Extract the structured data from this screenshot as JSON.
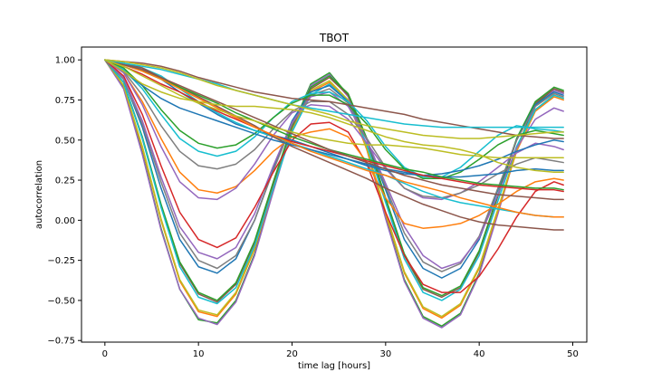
{
  "chart_data": {
    "type": "line",
    "title": "TBOT",
    "xlabel": "time lag [hours]",
    "ylabel": "autocorrelation",
    "xlim": [
      -2.5,
      51.5
    ],
    "ylim": [
      -0.76,
      1.08
    ],
    "xticks": [
      0,
      10,
      20,
      30,
      40,
      50
    ],
    "xtick_labels": [
      "0",
      "10",
      "20",
      "30",
      "40",
      "50"
    ],
    "yticks": [
      -0.75,
      -0.5,
      -0.25,
      0.0,
      0.25,
      0.5,
      0.75,
      1.0
    ],
    "ytick_labels": [
      "−0.75",
      "−0.50",
      "−0.25",
      "0.00",
      "0.25",
      "0.50",
      "0.75",
      "1.00"
    ],
    "grid": false,
    "legend": "none",
    "x": [
      0,
      2,
      4,
      6,
      8,
      10,
      12,
      14,
      16,
      18,
      20,
      22,
      24,
      26,
      28,
      30,
      32,
      34,
      36,
      38,
      40,
      42,
      44,
      46,
      48,
      49
    ],
    "series": [
      {
        "color": "#2ca02c",
        "values": [
          1.0,
          0.83,
          0.42,
          -0.05,
          -0.43,
          -0.62,
          -0.64,
          -0.5,
          -0.21,
          0.2,
          0.58,
          0.85,
          0.92,
          0.78,
          0.45,
          0.02,
          -0.37,
          -0.6,
          -0.66,
          -0.58,
          -0.33,
          0.05,
          0.45,
          0.72,
          0.82,
          0.8
        ]
      },
      {
        "color": "#9467bd",
        "values": [
          1.0,
          0.82,
          0.41,
          -0.06,
          -0.43,
          -0.61,
          -0.65,
          -0.51,
          -0.22,
          0.18,
          0.57,
          0.84,
          0.91,
          0.77,
          0.44,
          0.01,
          -0.38,
          -0.61,
          -0.67,
          -0.59,
          -0.34,
          0.04,
          0.44,
          0.71,
          0.81,
          0.79
        ]
      },
      {
        "color": "#ff7f0e",
        "values": [
          1.0,
          0.84,
          0.45,
          0.0,
          -0.38,
          -0.57,
          -0.6,
          -0.46,
          -0.18,
          0.2,
          0.56,
          0.8,
          0.86,
          0.74,
          0.44,
          0.04,
          -0.33,
          -0.55,
          -0.61,
          -0.53,
          -0.3,
          0.06,
          0.43,
          0.68,
          0.77,
          0.75
        ]
      },
      {
        "color": "#bcbd22",
        "values": [
          1.0,
          0.84,
          0.46,
          0.01,
          -0.37,
          -0.56,
          -0.59,
          -0.45,
          -0.17,
          0.21,
          0.57,
          0.81,
          0.87,
          0.75,
          0.45,
          0.05,
          -0.32,
          -0.54,
          -0.6,
          -0.52,
          -0.29,
          0.07,
          0.44,
          0.69,
          0.78,
          0.76
        ]
      },
      {
        "color": "#8c564b",
        "values": [
          1.0,
          0.86,
          0.51,
          0.09,
          -0.27,
          -0.46,
          -0.51,
          -0.4,
          -0.14,
          0.23,
          0.58,
          0.82,
          0.89,
          0.78,
          0.5,
          0.13,
          -0.22,
          -0.43,
          -0.48,
          -0.42,
          -0.2,
          0.15,
          0.5,
          0.73,
          0.82,
          0.8
        ]
      },
      {
        "color": "#2ca02c",
        "values": [
          1.0,
          0.86,
          0.52,
          0.1,
          -0.26,
          -0.45,
          -0.5,
          -0.39,
          -0.13,
          0.24,
          0.59,
          0.83,
          0.9,
          0.79,
          0.51,
          0.14,
          -0.21,
          -0.42,
          -0.47,
          -0.41,
          -0.19,
          0.16,
          0.51,
          0.74,
          0.83,
          0.81
        ]
      },
      {
        "color": "#17becf",
        "values": [
          1.0,
          0.86,
          0.51,
          0.08,
          -0.29,
          -0.48,
          -0.52,
          -0.42,
          -0.16,
          0.2,
          0.55,
          0.78,
          0.85,
          0.74,
          0.47,
          0.11,
          -0.24,
          -0.45,
          -0.5,
          -0.43,
          -0.22,
          0.12,
          0.46,
          0.69,
          0.78,
          0.76
        ]
      },
      {
        "color": "#1f77b4",
        "values": [
          1.0,
          0.88,
          0.58,
          0.2,
          -0.12,
          -0.29,
          -0.33,
          -0.24,
          0.0,
          0.32,
          0.62,
          0.8,
          0.84,
          0.74,
          0.5,
          0.19,
          -0.12,
          -0.3,
          -0.36,
          -0.3,
          -0.12,
          0.19,
          0.5,
          0.72,
          0.8,
          0.78
        ]
      },
      {
        "color": "#7f7f7f",
        "values": [
          1.0,
          0.88,
          0.6,
          0.24,
          -0.08,
          -0.25,
          -0.3,
          -0.22,
          0.0,
          0.31,
          0.6,
          0.78,
          0.82,
          0.73,
          0.5,
          0.21,
          -0.08,
          -0.26,
          -0.32,
          -0.27,
          -0.1,
          0.2,
          0.5,
          0.71,
          0.79,
          0.77
        ]
      },
      {
        "color": "#9467bd",
        "values": [
          1.0,
          0.89,
          0.62,
          0.27,
          -0.04,
          -0.2,
          -0.24,
          -0.17,
          0.04,
          0.34,
          0.61,
          0.77,
          0.8,
          0.71,
          0.5,
          0.23,
          -0.04,
          -0.22,
          -0.3,
          -0.26,
          -0.11,
          0.16,
          0.45,
          0.63,
          0.7,
          0.68
        ]
      },
      {
        "color": "#d62728",
        "values": [
          1.0,
          0.9,
          0.66,
          0.34,
          0.05,
          -0.12,
          -0.17,
          -0.11,
          0.08,
          0.3,
          0.5,
          0.6,
          0.61,
          0.55,
          0.35,
          0.05,
          -0.22,
          -0.4,
          -0.45,
          -0.45,
          -0.35,
          -0.18,
          0.02,
          0.18,
          0.24,
          0.22
        ]
      },
      {
        "color": "#ff7f0e",
        "values": [
          1.0,
          0.92,
          0.74,
          0.51,
          0.3,
          0.19,
          0.17,
          0.21,
          0.31,
          0.43,
          0.52,
          0.55,
          0.57,
          0.52,
          0.36,
          0.14,
          -0.02,
          -0.05,
          -0.04,
          -0.02,
          0.03,
          0.1,
          0.18,
          0.24,
          0.26,
          0.25
        ]
      },
      {
        "color": "#9467bd",
        "values": [
          1.0,
          0.92,
          0.72,
          0.46,
          0.24,
          0.14,
          0.13,
          0.2,
          0.35,
          0.53,
          0.67,
          0.72,
          0.71,
          0.63,
          0.48,
          0.32,
          0.2,
          0.14,
          0.13,
          0.17,
          0.24,
          0.33,
          0.42,
          0.48,
          0.46,
          0.44
        ]
      },
      {
        "color": "#7f7f7f",
        "values": [
          1.0,
          0.93,
          0.78,
          0.59,
          0.43,
          0.34,
          0.32,
          0.35,
          0.44,
          0.57,
          0.68,
          0.74,
          0.74,
          0.66,
          0.51,
          0.33,
          0.2,
          0.15,
          0.14,
          0.17,
          0.22,
          0.29,
          0.35,
          0.39,
          0.37,
          0.36
        ]
      },
      {
        "color": "#17becf",
        "values": [
          1.0,
          0.94,
          0.82,
          0.66,
          0.51,
          0.43,
          0.4,
          0.43,
          0.52,
          0.64,
          0.74,
          0.79,
          0.8,
          0.74,
          0.62,
          0.46,
          0.33,
          0.27,
          0.27,
          0.33,
          0.43,
          0.53,
          0.59,
          0.57,
          0.56,
          0.55
        ]
      },
      {
        "color": "#2ca02c",
        "values": [
          1.0,
          0.95,
          0.84,
          0.69,
          0.56,
          0.48,
          0.45,
          0.47,
          0.54,
          0.64,
          0.73,
          0.78,
          0.78,
          0.72,
          0.6,
          0.44,
          0.32,
          0.26,
          0.26,
          0.3,
          0.38,
          0.47,
          0.53,
          0.56,
          0.54,
          0.53
        ]
      },
      {
        "color": "#1f77b4",
        "values": [
          1.0,
          0.98,
          0.94,
          0.88,
          0.8,
          0.73,
          0.66,
          0.6,
          0.56,
          0.53,
          0.5,
          0.46,
          0.42,
          0.38,
          0.34,
          0.31,
          0.29,
          0.28,
          0.29,
          0.31,
          0.34,
          0.38,
          0.43,
          0.47,
          0.5,
          0.49
        ]
      },
      {
        "color": "#17becf",
        "values": [
          1.0,
          0.98,
          0.95,
          0.9,
          0.82,
          0.74,
          0.67,
          0.61,
          0.56,
          0.52,
          0.48,
          0.44,
          0.4,
          0.36,
          0.32,
          0.28,
          0.23,
          0.18,
          0.14,
          0.11,
          0.09,
          0.07,
          0.05,
          0.03,
          0.02,
          0.02
        ]
      },
      {
        "color": "#8c564b",
        "values": [
          1.0,
          0.98,
          0.95,
          0.89,
          0.83,
          0.77,
          0.71,
          0.65,
          0.59,
          0.52,
          0.46,
          0.41,
          0.36,
          0.31,
          0.26,
          0.2,
          0.15,
          0.1,
          0.06,
          0.02,
          -0.01,
          -0.03,
          -0.04,
          -0.05,
          -0.06,
          -0.06
        ]
      },
      {
        "color": "#1f77b4",
        "values": [
          1.0,
          0.93,
          0.84,
          0.76,
          0.7,
          0.66,
          0.62,
          0.58,
          0.54,
          0.5,
          0.47,
          0.44,
          0.41,
          0.38,
          0.35,
          0.32,
          0.3,
          0.28,
          0.27,
          0.27,
          0.28,
          0.29,
          0.31,
          0.32,
          0.31,
          0.31
        ]
      },
      {
        "color": "#2ca02c",
        "values": [
          1.0,
          0.97,
          0.93,
          0.88,
          0.83,
          0.78,
          0.73,
          0.67,
          0.62,
          0.57,
          0.52,
          0.48,
          0.44,
          0.41,
          0.38,
          0.35,
          0.32,
          0.3,
          0.27,
          0.25,
          0.23,
          0.22,
          0.21,
          0.2,
          0.2,
          0.19
        ]
      },
      {
        "color": "#d62728",
        "values": [
          1.0,
          0.96,
          0.91,
          0.85,
          0.8,
          0.74,
          0.68,
          0.63,
          0.58,
          0.53,
          0.49,
          0.46,
          0.43,
          0.4,
          0.37,
          0.34,
          0.31,
          0.28,
          0.26,
          0.24,
          0.22,
          0.21,
          0.2,
          0.19,
          0.19,
          0.18
        ]
      },
      {
        "color": "#ff7f0e",
        "values": [
          1.0,
          0.97,
          0.93,
          0.88,
          0.82,
          0.76,
          0.7,
          0.64,
          0.58,
          0.53,
          0.48,
          0.43,
          0.39,
          0.35,
          0.31,
          0.28,
          0.24,
          0.21,
          0.18,
          0.14,
          0.11,
          0.08,
          0.05,
          0.03,
          0.02,
          0.02
        ]
      },
      {
        "color": "#8c564b",
        "values": [
          1.0,
          0.97,
          0.94,
          0.89,
          0.84,
          0.79,
          0.74,
          0.69,
          0.64,
          0.59,
          0.54,
          0.49,
          0.44,
          0.4,
          0.36,
          0.32,
          0.28,
          0.25,
          0.22,
          0.2,
          0.18,
          0.16,
          0.15,
          0.14,
          0.13,
          0.13
        ]
      },
      {
        "color": "#bcbd22",
        "values": [
          1.0,
          0.93,
          0.85,
          0.8,
          0.76,
          0.74,
          0.72,
          0.71,
          0.71,
          0.7,
          0.69,
          0.67,
          0.64,
          0.6,
          0.56,
          0.52,
          0.49,
          0.47,
          0.46,
          0.44,
          0.41,
          0.36,
          0.33,
          0.31,
          0.3,
          0.3
        ]
      },
      {
        "color": "#bcbd22",
        "values": [
          1.0,
          0.96,
          0.9,
          0.84,
          0.78,
          0.73,
          0.69,
          0.65,
          0.62,
          0.58,
          0.55,
          0.52,
          0.5,
          0.48,
          0.47,
          0.47,
          0.46,
          0.45,
          0.43,
          0.41,
          0.4,
          0.39,
          0.39,
          0.39,
          0.39,
          0.39
        ]
      },
      {
        "color": "#8c564b",
        "values": [
          1.0,
          0.99,
          0.98,
          0.96,
          0.93,
          0.89,
          0.86,
          0.83,
          0.8,
          0.78,
          0.76,
          0.75,
          0.74,
          0.72,
          0.7,
          0.68,
          0.66,
          0.63,
          0.61,
          0.59,
          0.57,
          0.55,
          0.53,
          0.52,
          0.51,
          0.51
        ]
      },
      {
        "color": "#17becf",
        "values": [
          1.0,
          0.98,
          0.96,
          0.94,
          0.91,
          0.88,
          0.85,
          0.81,
          0.78,
          0.75,
          0.72,
          0.7,
          0.68,
          0.66,
          0.64,
          0.62,
          0.6,
          0.59,
          0.58,
          0.58,
          0.58,
          0.58,
          0.58,
          0.58,
          0.58,
          0.58
        ]
      },
      {
        "color": "#bcbd22",
        "values": [
          1.0,
          0.99,
          0.97,
          0.95,
          0.92,
          0.88,
          0.84,
          0.81,
          0.78,
          0.75,
          0.72,
          0.69,
          0.66,
          0.62,
          0.59,
          0.57,
          0.55,
          0.53,
          0.52,
          0.51,
          0.51,
          0.52,
          0.53,
          0.54,
          0.55,
          0.55
        ]
      }
    ]
  }
}
